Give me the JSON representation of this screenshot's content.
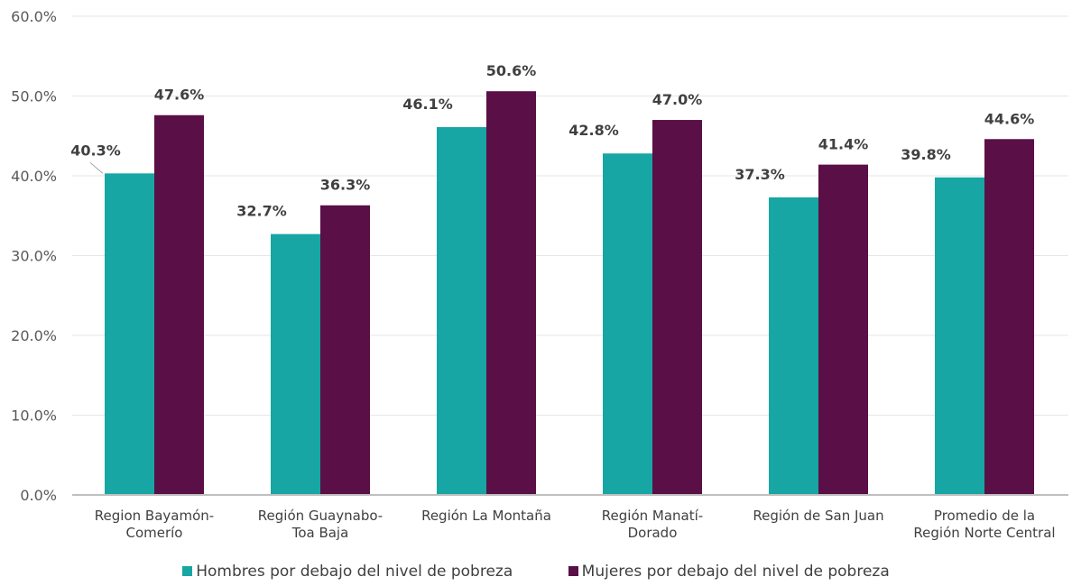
{
  "chart_data": {
    "type": "bar",
    "categories": [
      [
        "Region  Bayamón-",
        "Comerío"
      ],
      [
        "Región Guaynabo-",
        "Toa Baja"
      ],
      [
        "Región La Montaña"
      ],
      [
        "Región Manatí-",
        "Dorado"
      ],
      [
        "Región de San Juan"
      ],
      [
        "Promedio de la",
        "Región Norte Central"
      ]
    ],
    "series": [
      {
        "name": "Hombres por debajo del nivel de pobreza",
        "color": "#17a6a4",
        "values": [
          40.3,
          32.7,
          46.1,
          42.8,
          37.3,
          39.8
        ],
        "labels": [
          "40.3%",
          "32.7%",
          "46.1%",
          "42.8%",
          "37.3%",
          "39.8%"
        ]
      },
      {
        "name": "Mujeres por debajo del nivel de pobreza",
        "color": "#5a0f46",
        "values": [
          47.6,
          36.3,
          50.6,
          47.0,
          41.4,
          44.6
        ],
        "labels": [
          "47.6%",
          "36.3%",
          "50.6%",
          "47.0%",
          "41.4%",
          "44.6%"
        ]
      }
    ],
    "y_ticks": [
      "0.0%",
      "10.0%",
      "20.0%",
      "30.0%",
      "40.0%",
      "50.0%",
      "60.0%"
    ],
    "ylim": [
      0,
      60
    ],
    "grid": true,
    "legend_position": "bottom"
  }
}
